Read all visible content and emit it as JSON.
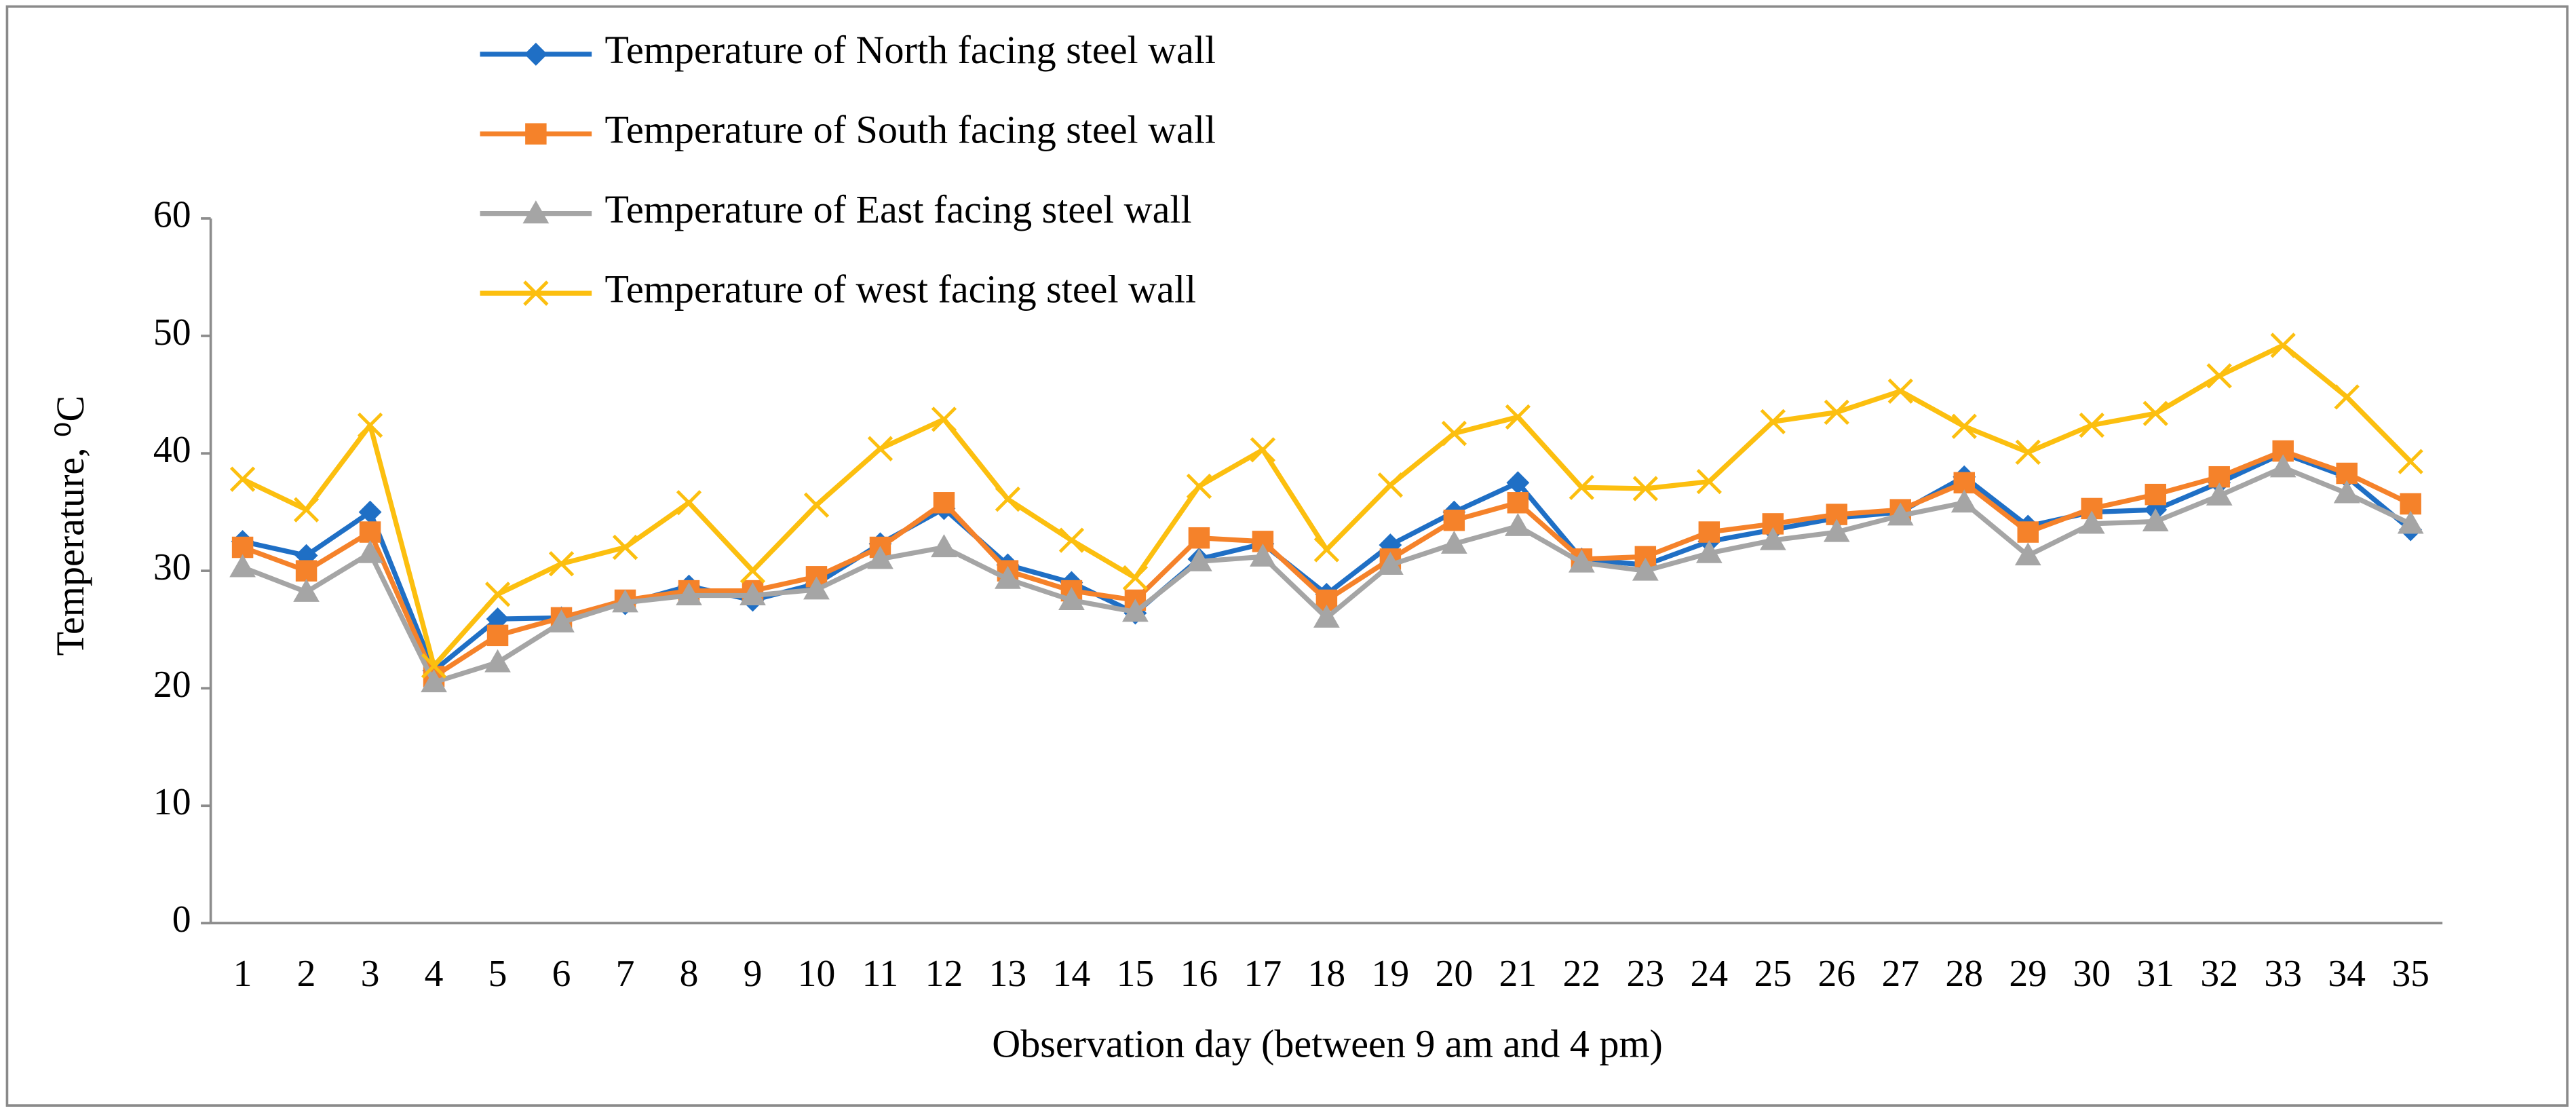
{
  "chart_data": {
    "type": "line",
    "y_label": "Temperature, ⁰C",
    "x_label": "Observation day (between 9 am and 4 pm)",
    "categories": [
      "1",
      "2",
      "3",
      "4",
      "5",
      "6",
      "7",
      "8",
      "9",
      "10",
      "11",
      "12",
      "13",
      "14",
      "15",
      "16",
      "17",
      "18",
      "19",
      "20",
      "21",
      "22",
      "23",
      "24",
      "25",
      "26",
      "27",
      "28",
      "29",
      "30",
      "31",
      "32",
      "33",
      "34",
      "35"
    ],
    "ylim": [
      0,
      60
    ],
    "yticks": [
      0,
      10,
      20,
      30,
      40,
      50,
      60
    ],
    "grid": false,
    "legend": "top",
    "series": [
      {
        "name": "Temperature of North facing steel wall",
        "color": "#1f6fc5",
        "marker": "diamond",
        "values": [
          32.5,
          31.3,
          35,
          21.5,
          25.9,
          26,
          27.2,
          28.7,
          27.5,
          28.9,
          32.3,
          35.3,
          30.5,
          29,
          26.4,
          31,
          32.3,
          28,
          32.2,
          35,
          37.5,
          31,
          30.5,
          32.5,
          33.5,
          34.5,
          35,
          38,
          33.8,
          35,
          35.2,
          37.5,
          40,
          38,
          33.5
        ]
      },
      {
        "name": "Temperature of South facing steel wall",
        "color": "#f5822a",
        "marker": "square",
        "values": [
          32,
          30,
          33.3,
          21,
          24.5,
          26,
          27.5,
          28.3,
          28.3,
          29.5,
          32,
          35.8,
          30,
          28.3,
          27.5,
          32.8,
          32.5,
          27.5,
          31,
          34.3,
          35.8,
          31,
          31.2,
          33.3,
          34,
          34.8,
          35.2,
          37.5,
          33.3,
          35.3,
          36.5,
          38,
          40.2,
          38.3,
          35.7
        ]
      },
      {
        "name": "Temperature of East facing steel wall",
        "color": "#a5a5a5",
        "marker": "triangle",
        "values": [
          30.3,
          28.2,
          31.5,
          20.5,
          22.2,
          25.6,
          27.3,
          27.9,
          27.9,
          28.4,
          31,
          32,
          29.3,
          27.5,
          26.5,
          30.8,
          31.2,
          26,
          30.5,
          32.3,
          33.8,
          30.7,
          30,
          31.5,
          32.6,
          33.3,
          34.7,
          35.8,
          31.3,
          34,
          34.2,
          36.4,
          38.8,
          36.6,
          34
        ]
      },
      {
        "name": "Temperature of west facing steel wall",
        "color": "#fcbf0f",
        "marker": "x",
        "values": [
          37.8,
          35.2,
          42.4,
          21.9,
          28,
          30.6,
          32,
          35.8,
          30,
          35.6,
          40.4,
          42.9,
          36.1,
          32.6,
          29.4,
          37.2,
          40.3,
          31.8,
          37.3,
          41.7,
          43.1,
          37.1,
          37,
          37.6,
          42.7,
          43.5,
          45.3,
          42.3,
          40.1,
          42.4,
          43.4,
          46.6,
          49.2,
          44.8,
          39.3
        ]
      }
    ]
  }
}
